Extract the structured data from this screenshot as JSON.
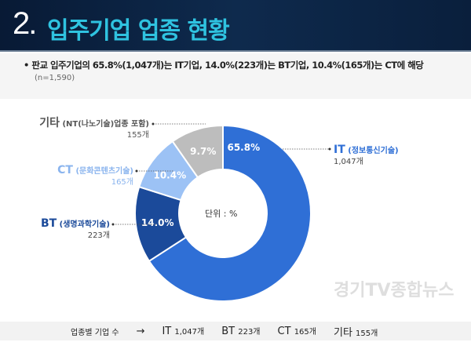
{
  "header": {
    "number": "2.",
    "title": "입주기업 업종 현황"
  },
  "summary": {
    "text": "판교 입주기업의 65.8%(1,047개)는 IT기업, 14.0%(223개)는 BT기업, 10.4%(165개)는 CT에 해당",
    "n": "(n=1,590)"
  },
  "chart_data": {
    "type": "pie",
    "donut": true,
    "unit_label": "단위 : %",
    "slices": [
      {
        "name": "IT",
        "desc": "(정보통신기술)",
        "count": "1,047개",
        "value": 65.8,
        "label": "65.8%",
        "color": "#2f6fd6"
      },
      {
        "name": "BT",
        "desc": "(생명과학기술)",
        "count": "223개",
        "value": 14.0,
        "label": "14.0%",
        "color": "#1b4a9a"
      },
      {
        "name": "CT",
        "desc": "(문화콘텐츠기술)",
        "count": "165개",
        "value": 10.4,
        "label": "10.4%",
        "color": "#9cc2f5"
      },
      {
        "name": "기타",
        "desc": "(NT(나노기술)업종 포함)",
        "count": "155개",
        "value": 9.7,
        "label": "9.7%",
        "color": "#bdbdbd"
      }
    ]
  },
  "footer": {
    "label": "업종별 기업 수",
    "arrow": "→",
    "items": [
      {
        "name": "IT",
        "count": "1,047개"
      },
      {
        "name": "BT",
        "count": "223개"
      },
      {
        "name": "CT",
        "count": "165개"
      },
      {
        "name": "기타",
        "count": "155개"
      }
    ]
  },
  "watermark": "경기TV종합뉴스"
}
